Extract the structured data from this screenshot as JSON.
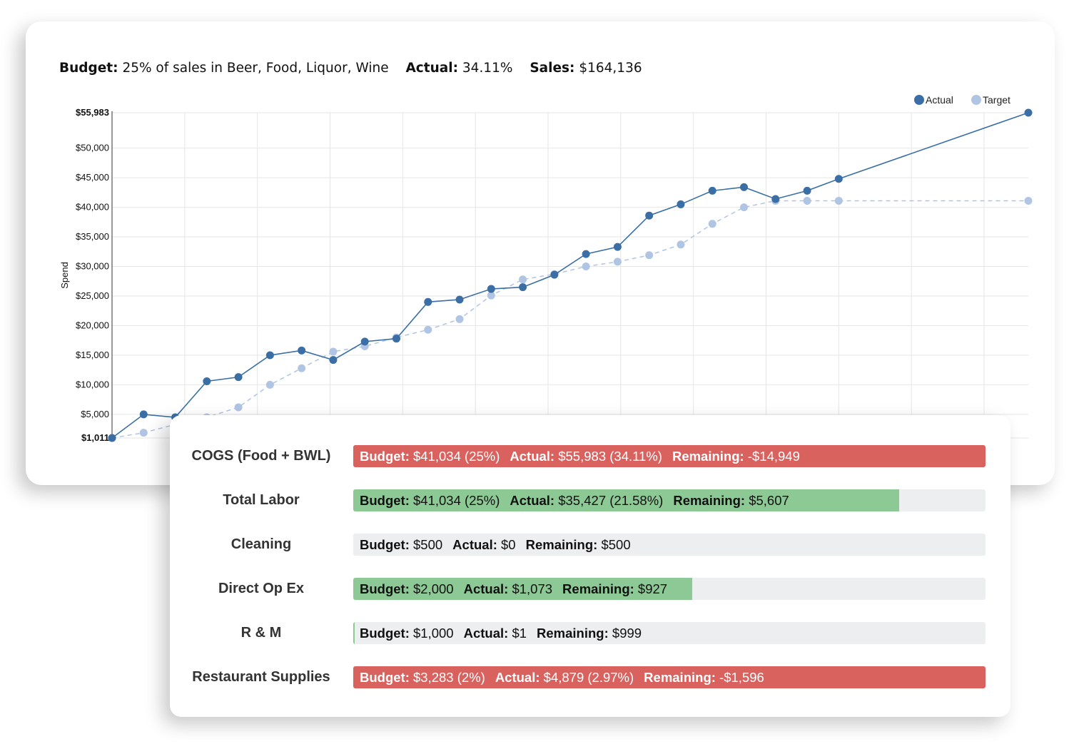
{
  "summary": {
    "budget_label": "Budget:",
    "budget_value": "25% of sales in Beer, Food, Liquor, Wine",
    "actual_label": "Actual:",
    "actual_value": "34.11%",
    "sales_label": "Sales:",
    "sales_value": "$164,136"
  },
  "chart_data": {
    "type": "line",
    "title": "",
    "xlabel": "",
    "ylabel": "Spend",
    "ylim": [
      1011,
      55983
    ],
    "y_ticks": [
      1011,
      5000,
      10000,
      15000,
      20000,
      25000,
      30000,
      35000,
      40000,
      45000,
      50000,
      55983
    ],
    "y_tick_labels": [
      "$1,011",
      "$5,000",
      "$10,000",
      "$15,000",
      "$20,000",
      "$25,000",
      "$30,000",
      "$35,000",
      "$40,000",
      "$45,000",
      "$50,000",
      "$55,983"
    ],
    "grid": true,
    "legend_position": "top-right",
    "x": [
      1,
      2,
      3,
      4,
      5,
      6,
      7,
      8,
      9,
      10,
      11,
      12,
      13,
      14,
      15,
      16,
      17,
      18,
      19,
      20,
      21,
      22,
      23,
      24,
      30
    ],
    "xlim": [
      1,
      30
    ],
    "series": [
      {
        "name": "Actual",
        "color": "#3a6ea5",
        "style": "solid",
        "values": [
          1011,
          5000,
          4500,
          10600,
          11300,
          15000,
          15800,
          14200,
          17300,
          17800,
          24000,
          24400,
          26200,
          26500,
          28600,
          32100,
          33300,
          38600,
          40500,
          42800,
          43400,
          41400,
          42800,
          44800,
          55983
        ]
      },
      {
        "name": "Target",
        "color": "#b0c4e4",
        "style": "dashed",
        "values": [
          1011,
          1900,
          3300,
          4500,
          6200,
          10000,
          12800,
          15600,
          16500,
          18000,
          19300,
          21100,
          25100,
          27800,
          28700,
          30000,
          30800,
          31900,
          33700,
          37200,
          40000,
          41100,
          41100,
          41100,
          41100
        ]
      }
    ]
  },
  "budget_rows": [
    {
      "label": "COGS (Food + BWL)",
      "fill_fraction": 1.0,
      "status": "over",
      "fill_color": "#d9625f",
      "budget_label": "Budget:",
      "budget_value": "$41,034 (25%)",
      "actual_label": "Actual:",
      "actual_value": "$55,983 (34.11%)",
      "remaining_label": "Remaining:",
      "remaining_value": "-$14,949"
    },
    {
      "label": "Total Labor",
      "fill_fraction": 0.8633,
      "status": "under",
      "fill_color": "#8dc995",
      "budget_label": "Budget:",
      "budget_value": "$41,034 (25%)",
      "actual_label": "Actual:",
      "actual_value": "$35,427 (21.58%)",
      "remaining_label": "Remaining:",
      "remaining_value": "$5,607"
    },
    {
      "label": "Cleaning",
      "fill_fraction": 0.0,
      "status": "under",
      "fill_color": "#8dc995",
      "budget_label": "Budget:",
      "budget_value": "$500",
      "actual_label": "Actual:",
      "actual_value": "$0",
      "remaining_label": "Remaining:",
      "remaining_value": "$500"
    },
    {
      "label": "Direct Op Ex",
      "fill_fraction": 0.5365,
      "status": "under",
      "fill_color": "#8dc995",
      "budget_label": "Budget:",
      "budget_value": "$2,000",
      "actual_label": "Actual:",
      "actual_value": "$1,073",
      "remaining_label": "Remaining:",
      "remaining_value": "$927"
    },
    {
      "label": "R & M",
      "fill_fraction": 0.001,
      "status": "under",
      "fill_color": "#8dc995",
      "budget_label": "Budget:",
      "budget_value": "$1,000",
      "actual_label": "Actual:",
      "actual_value": "$1",
      "remaining_label": "Remaining:",
      "remaining_value": "$999"
    },
    {
      "label": "Restaurant Supplies",
      "fill_fraction": 1.0,
      "status": "over",
      "fill_color": "#d9625f",
      "budget_label": "Budget:",
      "budget_value": "$3,283 (2%)",
      "actual_label": "Actual:",
      "actual_value": "$4,879 (2.97%)",
      "remaining_label": "Remaining:",
      "remaining_value": "-$1,596"
    }
  ]
}
